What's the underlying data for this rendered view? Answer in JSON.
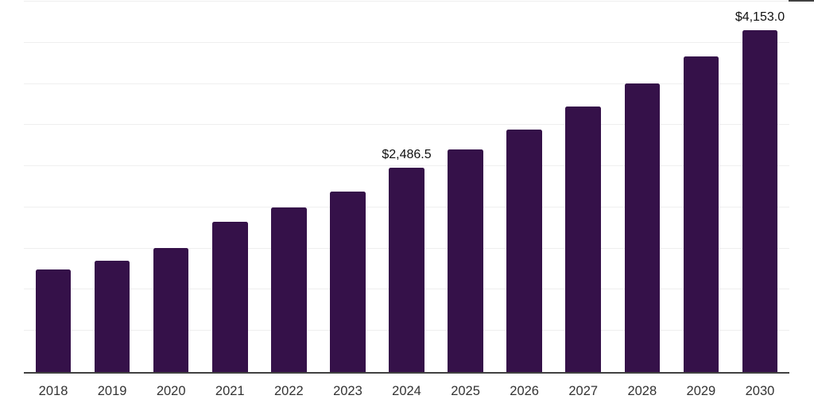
{
  "chart_data": {
    "type": "bar",
    "title": "",
    "xlabel": "",
    "ylabel": "",
    "categories": [
      "2018",
      "2019",
      "2020",
      "2021",
      "2022",
      "2023",
      "2024",
      "2025",
      "2026",
      "2027",
      "2028",
      "2029",
      "2030"
    ],
    "values": [
      1250,
      1352,
      1508,
      1824,
      2000,
      2193,
      2486.5,
      2708,
      2950,
      3226,
      3510,
      3830,
      4153
    ],
    "labeled_points": [
      {
        "category": "2024",
        "label": "$2,486.5"
      },
      {
        "category": "2030",
        "label": "$4,153.0"
      }
    ],
    "ylim": [
      0,
      4500
    ],
    "gridline_step": 500,
    "grid": true,
    "legend_position": "none",
    "y_axis_tick_labels_visible": false,
    "colors": {
      "bar": "#351149",
      "gridline": "#efefef",
      "axis_line": "#414141",
      "tick_label": "#333333",
      "data_label": "#111111",
      "background": "#ffffff"
    }
  }
}
